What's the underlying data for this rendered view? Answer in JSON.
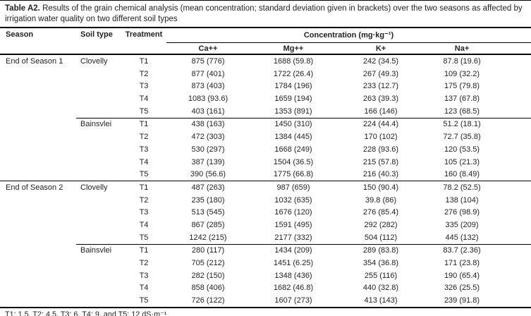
{
  "title": {
    "label": "Table A2.",
    "text": "Results of the grain chemical analysis (mean concentration; standard deviation given in brackets) over the two seasons as affected by irrigation water quality on two different soil types"
  },
  "headers": {
    "season": "Season",
    "soil_type": "Soil type",
    "treatment": "Treatment",
    "concentration": "Concentration (mg·kg⁻¹)",
    "ions": [
      "Ca++",
      "Mg++",
      "K+",
      "Na+"
    ]
  },
  "sections": [
    {
      "season": "End of Season 1",
      "groups": [
        {
          "soil": "Clovelly",
          "rows": [
            [
              "T1",
              "875 (776)",
              "1688 (59.8)",
              "242 (34.5)",
              "87.8 (19.6)"
            ],
            [
              "T2",
              "877 (401)",
              "1722 (26.4)",
              "267 (49.3)",
              "109 (32.2)"
            ],
            [
              "T3",
              "873 (403)",
              "1784 (196)",
              "233 (12.7)",
              "175 (79.8)"
            ],
            [
              "T4",
              "1083 (93.6)",
              "1659 (194)",
              "263 (39.3)",
              "137 (67.8)"
            ],
            [
              "T5",
              "403 (161)",
              "1353 (891)",
              "166 (146)",
              "123 (68.5)"
            ]
          ]
        },
        {
          "soil": "Bainsvlei",
          "rows": [
            [
              "T1",
              "438 (163)",
              "1450 (310)",
              "224 (44.4)",
              "51.2 (18.1)"
            ],
            [
              "T2",
              "472 (303)",
              "1384 (445)",
              "170 (102)",
              "72.7 (35.8)"
            ],
            [
              "T3",
              "530 (297)",
              "1668 (249)",
              "228 (93.6)",
              "120 (53.5)"
            ],
            [
              "T4",
              "387 (139)",
              "1504 (36.5)",
              "215 (57.8)",
              "105 (21.3)"
            ],
            [
              "T5",
              "390 (56.6)",
              "1775 (66.8)",
              "216 (40.3)",
              "160 (8.49)"
            ]
          ]
        }
      ]
    },
    {
      "season": "End of Season 2",
      "groups": [
        {
          "soil": "Clovelly",
          "rows": [
            [
              "T1",
              "487 (263)",
              "987 (659)",
              "150 (90.4)",
              "78.2 (52.5)"
            ],
            [
              "T2",
              "235 (180)",
              "1032 (635)",
              "39.8 (86)",
              "138 (104)"
            ],
            [
              "T3",
              "513 (545)",
              "1676 (120)",
              "276 (85.4)",
              "276 (98.9)"
            ],
            [
              "T4",
              "867 (285)",
              "1591 (495)",
              "292 (282)",
              "335 (209)"
            ],
            [
              "T5",
              "1242 (215)",
              "2177 (332)",
              "504 (112)",
              "445 (132)"
            ]
          ]
        },
        {
          "soil": "Bainsvlei",
          "rows": [
            [
              "T1",
              "280 (117)",
              "1434 (209)",
              "289 (83.8)",
              "83.7 (2.36)"
            ],
            [
              "T2",
              "705 (212)",
              "1451 (6.25)",
              "354 (36.8)",
              "171 (23.8)"
            ],
            [
              "T3",
              "282 (150)",
              "1348 (436)",
              "255 (116)",
              "190 (65.4)"
            ],
            [
              "T4",
              "858 (406)",
              "1682 (46.8)",
              "440 (32.8)",
              "326 (25.5)"
            ],
            [
              "T5",
              "726 (122)",
              "1607 (273)",
              "413 (143)",
              "239 (91.8)"
            ]
          ]
        }
      ]
    }
  ],
  "footnote": "T1: 1.5, T2: 4.5, T3: 6, T4: 9, and T5: 12 dS·m⁻¹"
}
